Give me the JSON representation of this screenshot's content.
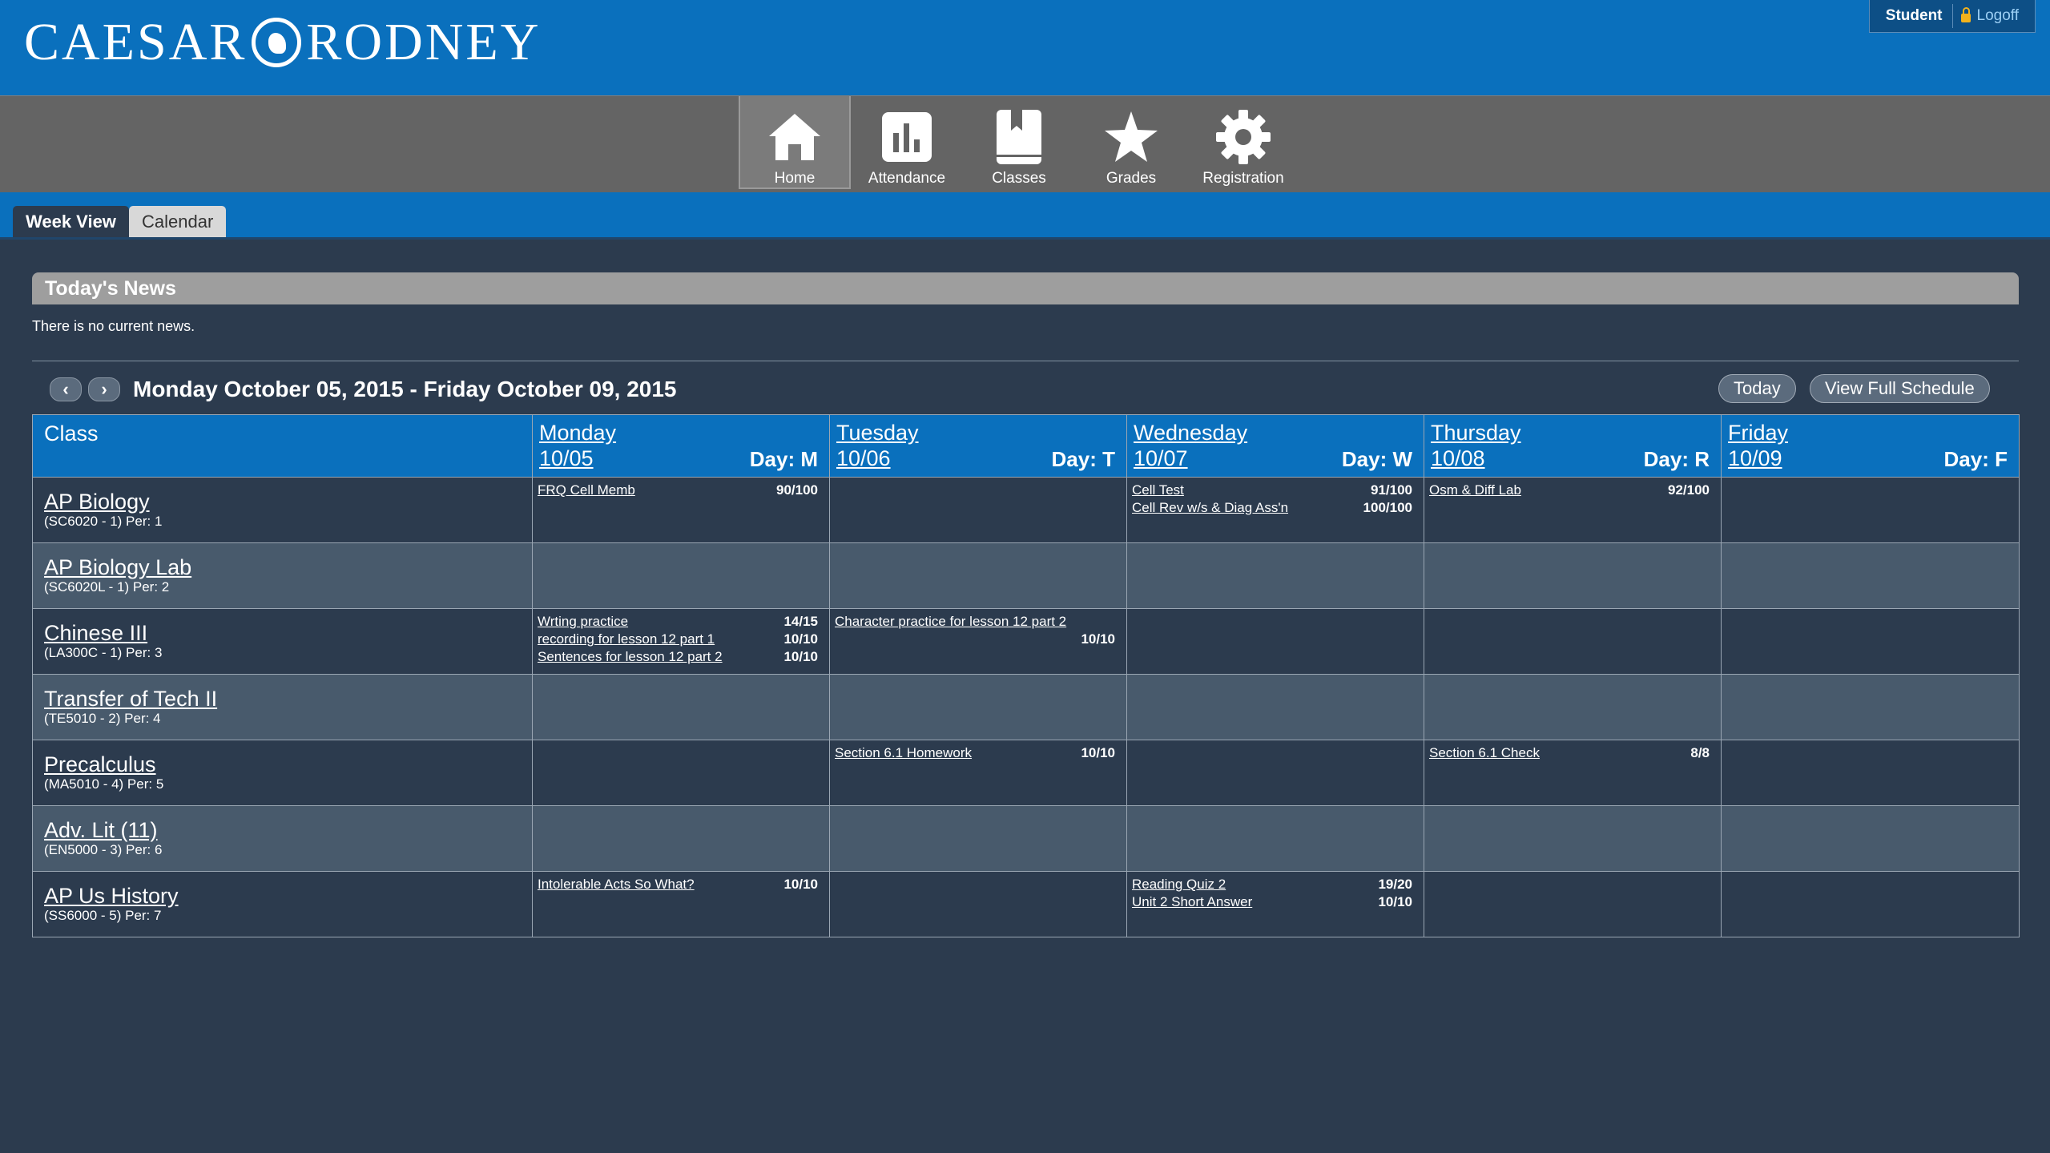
{
  "header": {
    "logo_left": "CAESAR",
    "logo_right": "RODNEY",
    "user": "Student",
    "logoff": "Logoff"
  },
  "nav": {
    "items": [
      {
        "label": "Home",
        "icon": "home-icon"
      },
      {
        "label": "Attendance",
        "icon": "bar-chart-icon"
      },
      {
        "label": "Classes",
        "icon": "book-icon"
      },
      {
        "label": "Grades",
        "icon": "star-icon"
      },
      {
        "label": "Registration",
        "icon": "gear-icon"
      }
    ],
    "active": "Home"
  },
  "subtabs": {
    "week_view": "Week View",
    "calendar": "Calendar"
  },
  "news": {
    "title": "Today's News",
    "text": "There is no current news."
  },
  "week": {
    "prev": "‹",
    "next": "›",
    "range": "Monday October 05, 2015 - Friday October 09, 2015",
    "today_btn": "Today",
    "full_schedule_btn": "View Full Schedule"
  },
  "table": {
    "class_header": "Class",
    "days": [
      {
        "name": "Monday",
        "date": "10/05",
        "letter": "Day: M"
      },
      {
        "name": "Tuesday",
        "date": "10/06",
        "letter": "Day: T"
      },
      {
        "name": "Wednesday",
        "date": "10/07",
        "letter": "Day: W"
      },
      {
        "name": "Thursday",
        "date": "10/08",
        "letter": "Day: R"
      },
      {
        "name": "Friday",
        "date": "10/09",
        "letter": "Day: F"
      }
    ],
    "rows": [
      {
        "name": "AP Biology",
        "info": "(SC6020 - 1) Per: 1"
      },
      {
        "name": "AP Biology Lab",
        "info": "(SC6020L - 1) Per: 2"
      },
      {
        "name": "Chinese III",
        "info": "(LA300C - 1) Per: 3"
      },
      {
        "name": "Transfer of Tech II",
        "info": "(TE5010 - 2) Per: 4"
      },
      {
        "name": "Precalculus",
        "info": "(MA5010 - 4) Per: 5"
      },
      {
        "name": "Adv. Lit (11)",
        "info": "(EN5000 - 3) Per: 6"
      },
      {
        "name": "AP Us History",
        "info": "(SS6000 - 5) Per: 7"
      }
    ],
    "assignments": {
      "r0_mon": [
        {
          "title": "FRQ Cell Memb",
          "score": "90/100"
        }
      ],
      "r0_wed": [
        {
          "title": "Cell Test",
          "score": "91/100"
        },
        {
          "title": "Cell Rev w/s & Diag Ass'n",
          "score": "100/100"
        }
      ],
      "r0_thu": [
        {
          "title": "Osm & Diff Lab",
          "score": "92/100"
        }
      ],
      "r2_mon": [
        {
          "title": "Wrting practice",
          "score": "14/15"
        },
        {
          "title": "recording for lesson 12 part 1",
          "score": "10/10"
        },
        {
          "title": "Sentences for lesson 12 part 2",
          "score": "10/10"
        }
      ],
      "r2_tue": [
        {
          "title": "Character practice for lesson 12 part 2",
          "score": "10/10"
        }
      ],
      "r4_tue": [
        {
          "title": "Section 6.1 Homework",
          "score": "10/10"
        }
      ],
      "r4_thu": [
        {
          "title": "Section 6.1 Check",
          "score": "8/8"
        }
      ],
      "r6_mon": [
        {
          "title": "Intolerable Acts So What?",
          "score": "10/10"
        }
      ],
      "r6_wed": [
        {
          "title": "Reading Quiz 2",
          "score": "19/20"
        },
        {
          "title": "Unit 2 Short Answer",
          "score": "10/10"
        }
      ]
    }
  }
}
